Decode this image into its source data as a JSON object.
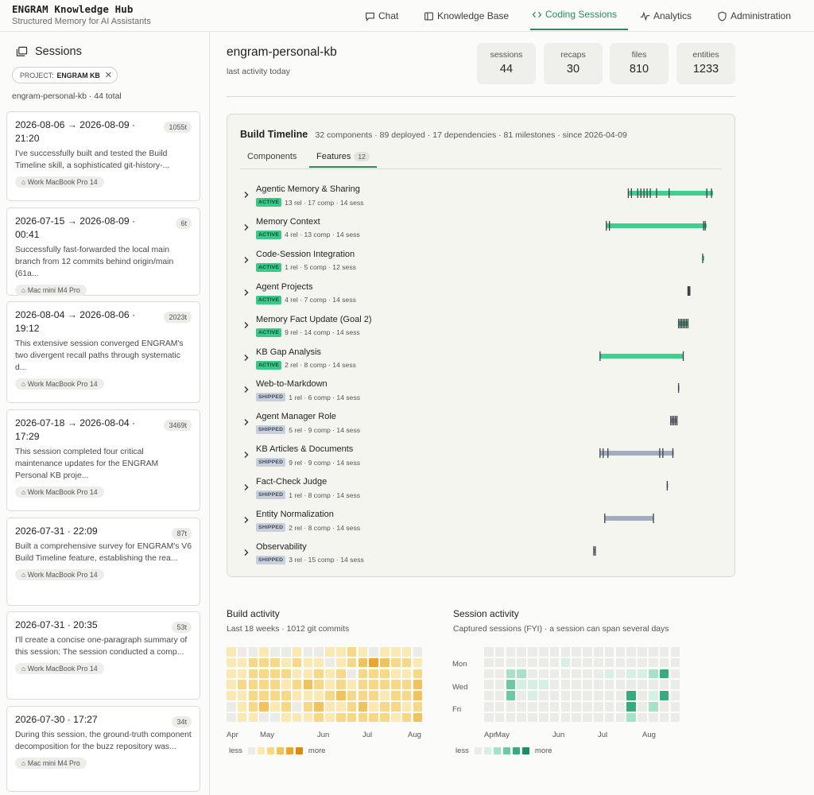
{
  "brand": {
    "title": "ENGRAM Knowledge Hub",
    "subtitle": "Structured Memory for AI Assistants"
  },
  "nav": [
    {
      "label": "Chat",
      "icon": "chat-icon"
    },
    {
      "label": "Knowledge Base",
      "icon": "book-icon"
    },
    {
      "label": "Coding Sessions",
      "icon": "code-icon",
      "active": true
    },
    {
      "label": "Analytics",
      "icon": "activity-icon"
    },
    {
      "label": "Administration",
      "icon": "shield-icon"
    }
  ],
  "sidebar": {
    "title": "Sessions",
    "filter": {
      "key": "PROJECT:",
      "value": "ENGRAM KB"
    },
    "count": "engram-personal-kb · 44 total",
    "sessions": [
      {
        "title": "2026-08-06 → 2026-08-09 · 21:20",
        "tokens": "1055t",
        "summary": "I've successfully built and tested the Build Timeline skill, a sophisticated git-history-...",
        "device": "⌂ Work MacBook Pro 14"
      },
      {
        "title": "2026-07-15 → 2026-08-09 · 00:41",
        "tokens": "6t",
        "summary": "Successfully fast-forwarded the local main branch from 12 commits behind origin/main (61a...",
        "device": "⌂ Mac mini M4 Pro"
      },
      {
        "title": "2026-08-04 → 2026-08-06 · 19:12",
        "tokens": "2023t",
        "summary": "This extensive session converged ENGRAM's two divergent recall paths through systematic d...",
        "device": "⌂ Work MacBook Pro 14"
      },
      {
        "title": "2026-07-18 → 2026-08-04 · 17:29",
        "tokens": "3469t",
        "summary": "This session completed four critical maintenance updates for the ENGRAM Personal KB proje...",
        "device": "⌂ Work MacBook Pro 14"
      },
      {
        "title": "2026-07-31 · 22:09",
        "tokens": "87t",
        "summary": "Built a comprehensive survey for ENGRAM's V6 Build Timeline feature, establishing the rea...",
        "device": "⌂ Work MacBook Pro 14"
      },
      {
        "title": "2026-07-31 · 20:35",
        "tokens": "53t",
        "summary": "I'll create a concise one-paragraph summary of this session: The session conducted a comp...",
        "device": "⌂ Work MacBook Pro 14"
      },
      {
        "title": "2026-07-30 · 17:27",
        "tokens": "34t",
        "summary": "During this session, the ground-truth component decomposition for the buzz repository was...",
        "device": "⌂ Mac mini M4 Pro"
      }
    ]
  },
  "project": {
    "name": "engram-personal-kb",
    "activity": "last activity today",
    "stats": [
      {
        "label": "sessions",
        "value": "44"
      },
      {
        "label": "recaps",
        "value": "30"
      },
      {
        "label": "files",
        "value": "810"
      },
      {
        "label": "entities",
        "value": "1233"
      }
    ]
  },
  "build_timeline": {
    "title": "Build Timeline",
    "summary": "32 components · 89 deployed · 17 dependencies · 81 milestones · since 2026-04-09",
    "tabs": [
      {
        "label": "Components"
      },
      {
        "label": "Features",
        "count": "12",
        "active": true
      }
    ],
    "status_colors": {
      "ACTIVE": "#3fcf8e",
      "SHIPPED": "#a3abbd"
    },
    "features": [
      {
        "name": "Agentic Memory & Sharing",
        "status": "ACTIVE",
        "stats": "13 rel · 17 comp · 14 sess",
        "span": [
          0.72,
          0.99
        ],
        "ticks": [
          0.72,
          0.73,
          0.75,
          0.76,
          0.77,
          0.78,
          0.79,
          0.81,
          0.85,
          0.97,
          0.985
        ]
      },
      {
        "name": "Memory Context",
        "status": "ACTIVE",
        "stats": "4 rel · 13 comp · 14 sess",
        "span": [
          0.65,
          0.97
        ],
        "ticks": [
          0.65,
          0.66,
          0.96,
          0.965
        ]
      },
      {
        "name": "Code-Session Integration",
        "status": "ACTIVE",
        "stats": "1 rel · 5 comp · 12 sess",
        "span": [
          0.955,
          0.962
        ],
        "ticks": [
          0.957
        ]
      },
      {
        "name": "Agent Projects",
        "status": "ACTIVE",
        "stats": "4 rel · 7 comp · 14 sess",
        "span": [
          0.91,
          0.918
        ],
        "ticks": [
          0.91,
          0.913,
          0.916
        ]
      },
      {
        "name": "Memory Fact Update (Goal 2)",
        "status": "ACTIVE",
        "stats": "9 rel · 14 comp · 14 sess",
        "span": [
          0.88,
          0.91
        ],
        "ticks": [
          0.88,
          0.885,
          0.89,
          0.895,
          0.9,
          0.905,
          0.91
        ]
      },
      {
        "name": "KB Gap Analysis",
        "status": "ACTIVE",
        "stats": "2 rel · 8 comp · 14 sess",
        "span": [
          0.63,
          0.895
        ],
        "ticks": [
          0.63,
          0.895
        ]
      },
      {
        "name": "Web-to-Markdown",
        "status": "SHIPPED",
        "stats": "1 rel · 6 comp · 14 sess",
        "span": [
          0.878,
          0.882
        ],
        "ticks": [
          0.88
        ]
      },
      {
        "name": "Agent Manager Role",
        "status": "SHIPPED",
        "stats": "5 rel · 9 comp · 14 sess",
        "span": [
          0.855,
          0.875
        ],
        "ticks": [
          0.855,
          0.86,
          0.865,
          0.87,
          0.875
        ]
      },
      {
        "name": "KB Articles & Documents",
        "status": "SHIPPED",
        "stats": "9 rel · 9 comp · 14 sess",
        "span": [
          0.63,
          0.865
        ],
        "ticks": [
          0.63,
          0.64,
          0.655,
          0.82,
          0.83,
          0.862
        ]
      },
      {
        "name": "Fact-Check Judge",
        "status": "SHIPPED",
        "stats": "1 rel · 8 comp · 14 sess",
        "span": [
          0.842,
          0.846
        ],
        "ticks": [
          0.844
        ]
      },
      {
        "name": "Entity Normalization",
        "status": "SHIPPED",
        "stats": "2 rel · 8 comp · 14 sess",
        "span": [
          0.645,
          0.8
        ],
        "ticks": [
          0.645,
          0.8
        ]
      },
      {
        "name": "Observability",
        "status": "SHIPPED",
        "stats": "3 rel · 15 comp · 14 sess",
        "span": [
          0.61,
          0.615
        ],
        "ticks": [
          0.61,
          0.615
        ]
      }
    ]
  },
  "build_activity": {
    "title": "Build activity",
    "subtitle": "Last 18 weeks · 1012 git commits",
    "months": [
      "Apr",
      "May",
      "Jun",
      "Jul",
      "Aug"
    ],
    "legend_less": "less",
    "legend_more": "more",
    "palette": [
      "#ebebe7",
      "#fbe9b3",
      "#f7d886",
      "#f2c35a",
      "#eaa52a",
      "#d98a18"
    ],
    "weeks": [
      [
        1,
        1,
        1,
        1,
        1,
        0,
        0
      ],
      [
        0,
        1,
        1,
        2,
        1,
        1,
        1
      ],
      [
        0,
        2,
        2,
        2,
        2,
        2,
        1
      ],
      [
        1,
        2,
        2,
        2,
        2,
        3,
        0
      ],
      [
        0,
        2,
        2,
        2,
        2,
        1,
        0
      ],
      [
        0,
        1,
        2,
        1,
        2,
        2,
        1
      ],
      [
        1,
        2,
        1,
        2,
        1,
        0,
        1
      ],
      [
        0,
        1,
        1,
        3,
        1,
        2,
        1
      ],
      [
        0,
        1,
        2,
        2,
        1,
        3,
        2
      ],
      [
        1,
        0,
        1,
        1,
        2,
        1,
        1
      ],
      [
        1,
        1,
        2,
        2,
        3,
        1,
        2
      ],
      [
        2,
        2,
        0,
        1,
        2,
        2,
        2
      ],
      [
        1,
        3,
        2,
        2,
        2,
        3,
        2
      ],
      [
        0,
        4,
        2,
        2,
        2,
        1,
        2
      ],
      [
        1,
        3,
        2,
        2,
        1,
        2,
        2
      ],
      [
        1,
        2,
        1,
        2,
        2,
        2,
        1
      ],
      [
        1,
        2,
        1,
        2,
        2,
        1,
        2
      ],
      [
        0,
        1,
        2,
        3,
        3,
        2,
        3
      ]
    ]
  },
  "session_activity": {
    "title": "Session activity",
    "subtitle": "Captured sessions (FYI) · a session can span several days",
    "days": [
      "Mon",
      "Wed",
      "Fri"
    ],
    "months": [
      "Apr",
      "May",
      "Jun",
      "Jul",
      "Aug"
    ],
    "legend_less": "less",
    "legend_more": "more",
    "palette": [
      "#ebebe7",
      "#d6f0e5",
      "#a9e0c8",
      "#6ec8a3",
      "#38ab7e",
      "#228a60"
    ],
    "weeks": [
      [
        0,
        0,
        0,
        0,
        0,
        0,
        0
      ],
      [
        0,
        0,
        0,
        0,
        0,
        0,
        0
      ],
      [
        0,
        0,
        2,
        3,
        3,
        0,
        0
      ],
      [
        0,
        0,
        2,
        1,
        0,
        0,
        0
      ],
      [
        0,
        0,
        0,
        1,
        1,
        0,
        0
      ],
      [
        0,
        0,
        0,
        1,
        0,
        0,
        0
      ],
      [
        0,
        0,
        0,
        0,
        0,
        0,
        0
      ],
      [
        0,
        1,
        0,
        0,
        0,
        0,
        0
      ],
      [
        0,
        0,
        0,
        0,
        0,
        0,
        0
      ],
      [
        0,
        0,
        0,
        0,
        0,
        0,
        0
      ],
      [
        0,
        0,
        0,
        0,
        0,
        0,
        0
      ],
      [
        0,
        0,
        1,
        0,
        0,
        0,
        0
      ],
      [
        0,
        0,
        0,
        0,
        0,
        0,
        0
      ],
      [
        0,
        0,
        1,
        0,
        4,
        4,
        2
      ],
      [
        0,
        0,
        1,
        0,
        0,
        0,
        0
      ],
      [
        0,
        0,
        2,
        0,
        1,
        2,
        0
      ],
      [
        0,
        0,
        4,
        0,
        4,
        0,
        0
      ],
      [
        0,
        0,
        0,
        0,
        0,
        0,
        0
      ]
    ]
  }
}
